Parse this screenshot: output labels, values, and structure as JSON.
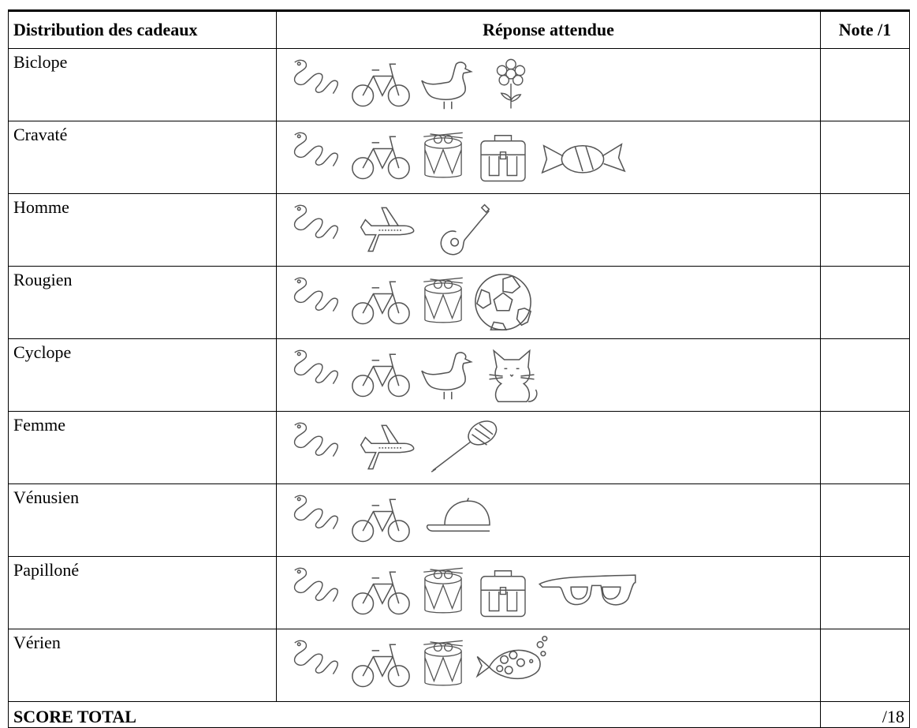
{
  "table": {
    "header": [
      "Distribution des cadeaux",
      "Réponse attendue",
      "Note /1"
    ],
    "rows": [
      "Biclope",
      "Cravaté",
      "Homme",
      "Rougien",
      "Cyclope",
      "Femme",
      "Vénusien",
      "Papilloné",
      "Vérien"
    ],
    "footer": [
      "SCORE TOTAL",
      "/18"
    ]
  }
}
